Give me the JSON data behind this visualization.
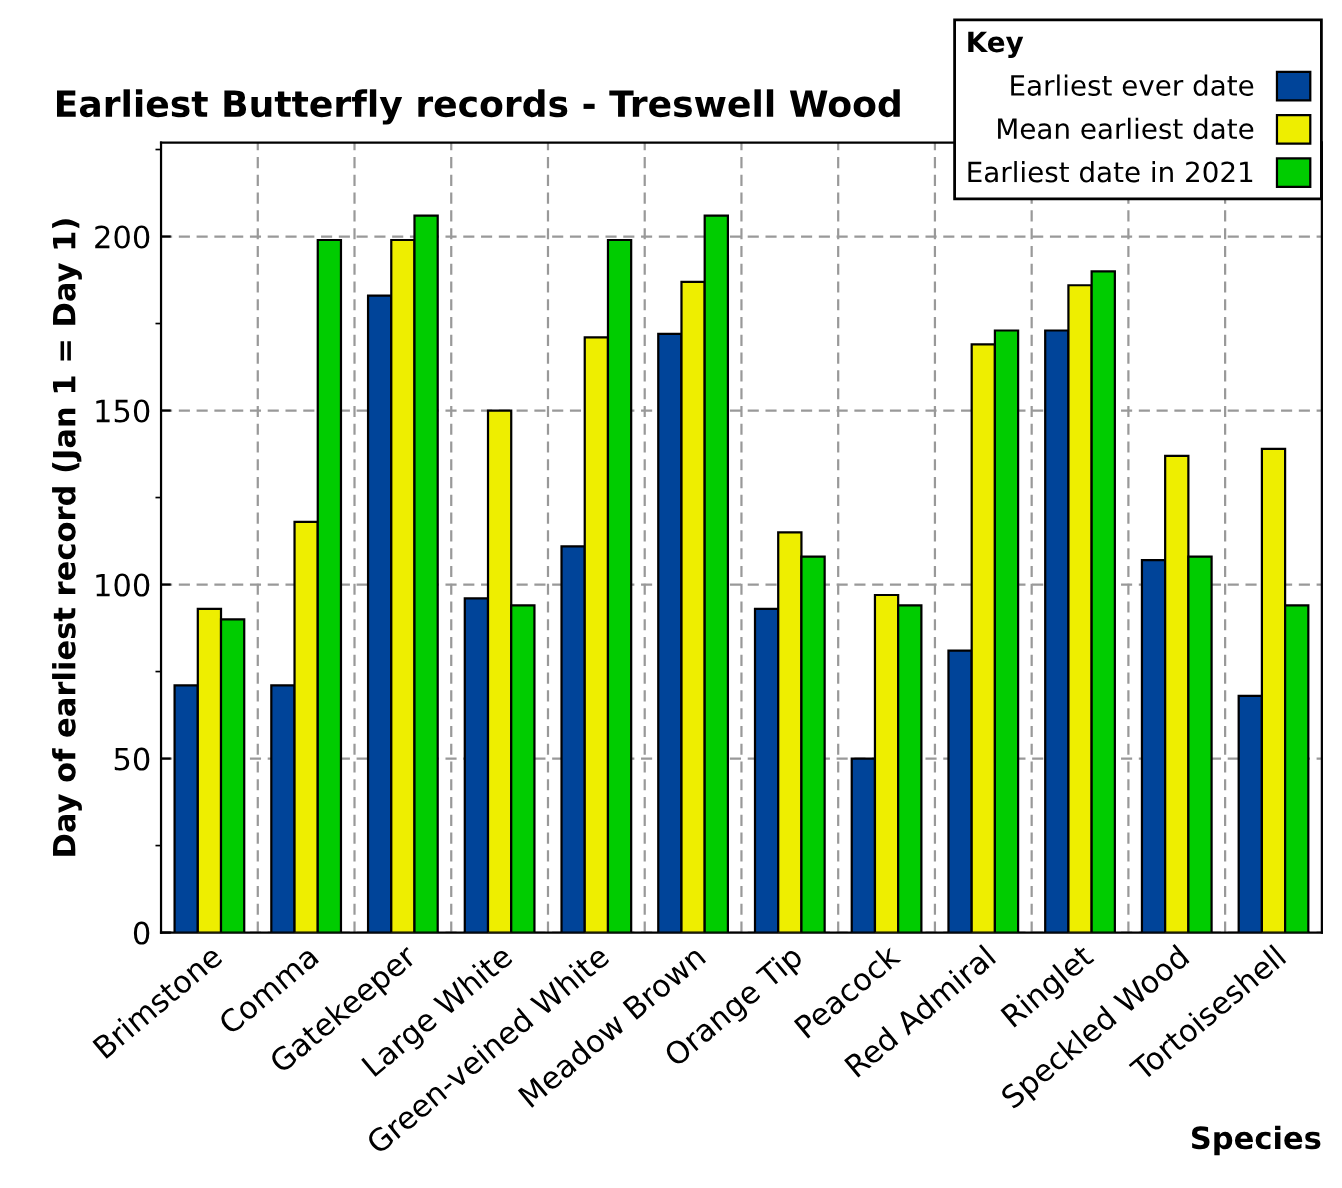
{
  "chart_data": {
    "type": "bar",
    "title": "Earliest Butterfly records - Treswell Wood",
    "xlabel": "Species",
    "ylabel": "Day of earliest record (Jan 1 = Day 1)",
    "legend_title": "Key",
    "legend": "top right",
    "grid": true,
    "categories": [
      "Brimstone",
      "Comma",
      "Gatekeeper",
      "Large White",
      "Green-veined White",
      "Meadow Brown",
      "Orange Tip",
      "Peacock",
      "Red Admiral",
      "Ringlet",
      "Speckled Wood",
      "Tortoiseshell"
    ],
    "series": [
      {
        "name": "Earliest ever date",
        "color": "#004499",
        "values": [
          71,
          71,
          183,
          96,
          111,
          172,
          93,
          50,
          81,
          173,
          107,
          68
        ]
      },
      {
        "name": "Mean earliest date",
        "color": "#eeee00",
        "values": [
          93,
          118,
          199,
          150,
          171,
          187,
          115,
          97,
          169,
          186,
          137,
          139
        ]
      },
      {
        "name": "Earliest date in 2021",
        "color": "#00cc00",
        "values": [
          90,
          199,
          206,
          94,
          199,
          206,
          108,
          94,
          173,
          190,
          108,
          94
        ]
      }
    ],
    "ylim": [
      0,
      227
    ],
    "yticks": [
      0,
      50,
      100,
      150,
      200
    ]
  }
}
